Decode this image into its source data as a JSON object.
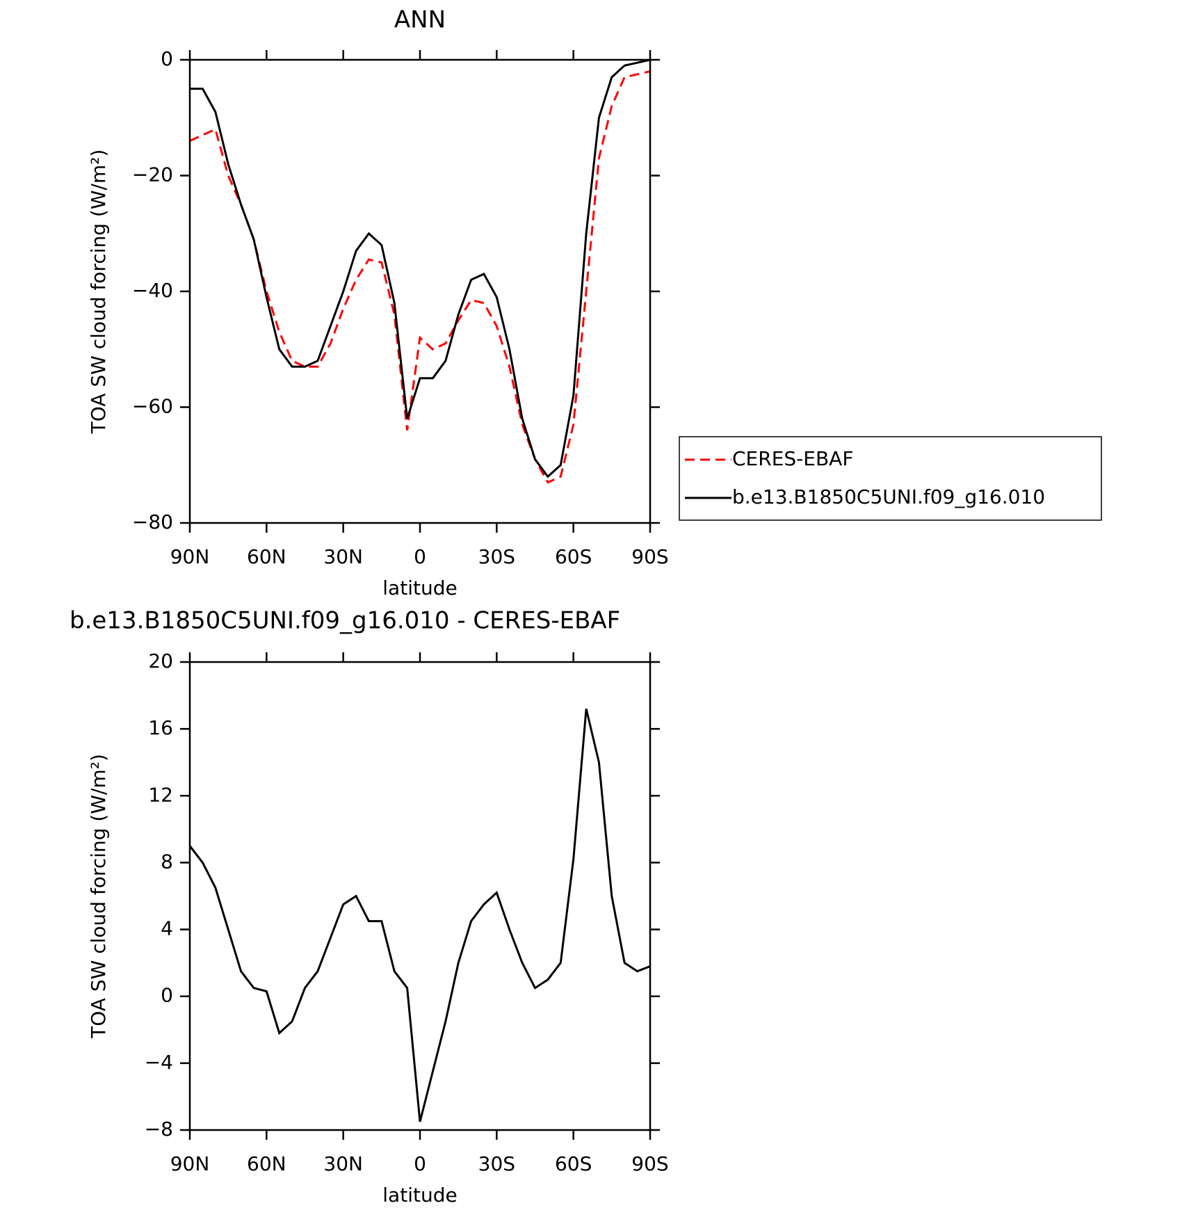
{
  "chart_data": [
    {
      "type": "line",
      "title": "ANN",
      "xlabel": "latitude",
      "ylabel": "TOA SW cloud forcing (W/m²)",
      "x": [
        90,
        85,
        80,
        75,
        70,
        65,
        60,
        55,
        50,
        45,
        40,
        35,
        30,
        25,
        20,
        15,
        10,
        5,
        0,
        -5,
        -10,
        -15,
        -20,
        -25,
        -30,
        -35,
        -40,
        -45,
        -50,
        -55,
        -60,
        -65,
        -70,
        -75,
        -80,
        -85,
        -90
      ],
      "xlim": [
        90,
        -90
      ],
      "xticks": [
        {
          "value": 90,
          "label": "90N"
        },
        {
          "value": 60,
          "label": "60N"
        },
        {
          "value": 30,
          "label": "30N"
        },
        0,
        {
          "value": -30,
          "label": "30S"
        },
        {
          "value": -60,
          "label": "60S"
        },
        {
          "value": -90,
          "label": "90S"
        }
      ],
      "ylim": [
        -80,
        0
      ],
      "yticks": [
        {
          "value": -80,
          "label": "−80"
        },
        {
          "value": -60,
          "label": "−60"
        },
        {
          "value": -40,
          "label": "−40"
        },
        {
          "value": -20,
          "label": "−20"
        },
        0
      ],
      "legend": "right",
      "series": [
        {
          "name": "CERES-EBAF",
          "color": "#ff0000",
          "line_style": "dashed",
          "values": [
            -14,
            -13,
            -12,
            -20,
            -25,
            -31,
            -40,
            -47,
            -52,
            -53,
            -53,
            -49,
            -43,
            -38,
            -34.5,
            -35,
            -44,
            -64,
            -48,
            -50,
            -49,
            -45,
            -41.5,
            -42,
            -46,
            -53,
            -63,
            -69,
            -73,
            -72,
            -63,
            -40,
            -17,
            -8,
            -3,
            -2.5,
            -2
          ]
        },
        {
          "name": "b.e13.B1850C5UNI.f09_g16.010",
          "color": "#000000",
          "line_style": "solid",
          "values": [
            -5,
            -5,
            -9,
            -18,
            -25,
            -31,
            -41,
            -50,
            -53,
            -53,
            -52,
            -46,
            -40,
            -33,
            -30,
            -32,
            -42,
            -62,
            -55,
            -55,
            -52,
            -44,
            -38,
            -37,
            -41,
            -50,
            -62,
            -69,
            -72,
            -70,
            -58,
            -30,
            -10,
            -3,
            -1,
            -0.5,
            0
          ]
        }
      ]
    },
    {
      "type": "line",
      "title": "b.e13.B1850C5UNI.f09_g16.010 - CERES-EBAF",
      "xlabel": "latitude",
      "ylabel": "TOA SW cloud forcing (W/m²)",
      "x": [
        90,
        85,
        80,
        75,
        70,
        65,
        60,
        55,
        50,
        45,
        40,
        35,
        30,
        25,
        20,
        15,
        10,
        5,
        0,
        -5,
        -10,
        -15,
        -20,
        -25,
        -30,
        -35,
        -40,
        -45,
        -50,
        -55,
        -60,
        -65,
        -70,
        -75,
        -80,
        -85,
        -90
      ],
      "xlim": [
        90,
        -90
      ],
      "xticks": [
        {
          "value": 90,
          "label": "90N"
        },
        {
          "value": 60,
          "label": "60N"
        },
        {
          "value": 30,
          "label": "30N"
        },
        0,
        {
          "value": -30,
          "label": "30S"
        },
        {
          "value": -60,
          "label": "60S"
        },
        {
          "value": -90,
          "label": "90S"
        }
      ],
      "ylim": [
        -8,
        20
      ],
      "yticks": [
        {
          "value": -8,
          "label": "−8"
        },
        {
          "value": -4,
          "label": "−4"
        },
        0,
        4,
        8,
        12,
        16,
        20
      ],
      "color": "#000000",
      "values": [
        9,
        8,
        6.5,
        4,
        1.5,
        0.5,
        0.3,
        -2.2,
        -1.5,
        0.5,
        1.5,
        3.5,
        5.5,
        6,
        4.5,
        4.5,
        1.5,
        0.5,
        -7.5,
        -4.5,
        -1.5,
        2,
        4.5,
        5.5,
        6.2,
        4,
        2,
        0.5,
        1,
        2,
        8.2,
        17.2,
        14,
        6,
        2,
        1.5,
        1.8
      ]
    }
  ]
}
